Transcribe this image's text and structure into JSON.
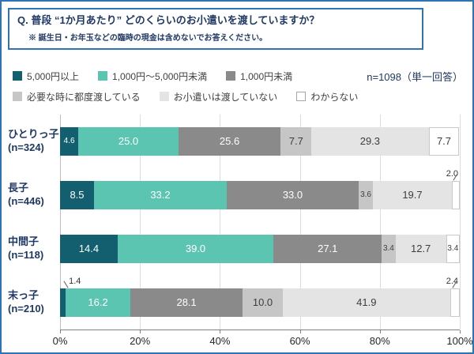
{
  "header": {
    "title": "Q. 普段 “1か月あたり” どのくらいのお小遣いを渡していますか？",
    "subtitle": "※ 誕生日・お年玉などの臨時の現金は含めないでお答えください。"
  },
  "sample_note": "n=1098（単一回答）",
  "colors": {
    "frame_border": "#2e74b5",
    "title_text": "#1f3864",
    "axis_line": "#808080"
  },
  "chart_data": {
    "type": "bar",
    "stacked": true,
    "orientation": "horizontal",
    "unit": "%",
    "xlim": [
      0,
      100
    ],
    "x_ticks": [
      "0%",
      "20%",
      "40%",
      "60%",
      "80%",
      "100%"
    ],
    "grid": true,
    "legend_position": "top",
    "categories": [
      {
        "name": "ひとりっ子",
        "n": "(n=324)"
      },
      {
        "name": "長子",
        "n": "(n=446)"
      },
      {
        "name": "中間子",
        "n": "(n=118)"
      },
      {
        "name": "末っ子",
        "n": "(n=210)"
      }
    ],
    "series": [
      {
        "name": "5,000円以上",
        "color": "#135f70",
        "text_color": "#ffffff",
        "values": [
          4.6,
          8.5,
          14.4,
          1.4
        ]
      },
      {
        "name": "1,000円～5,000円未満",
        "color": "#5bc5b2",
        "text_color": "#ffffff",
        "values": [
          25.0,
          33.2,
          39.0,
          16.2
        ]
      },
      {
        "name": "1,000円未満",
        "color": "#8a8a8a",
        "text_color": "#ffffff",
        "values": [
          25.6,
          33.0,
          27.1,
          28.1
        ]
      },
      {
        "name": "必要な時に都度渡している",
        "color": "#c6c6c6",
        "text_color": "#3d3d3d",
        "values": [
          7.7,
          3.6,
          3.4,
          10.0
        ]
      },
      {
        "name": "お小遣いは渡していない",
        "color": "#e4e4e4",
        "text_color": "#3d3d3d",
        "values": [
          29.3,
          19.7,
          12.7,
          41.9
        ]
      },
      {
        "name": "わからない",
        "color": "#ffffff",
        "text_color": "#3d3d3d",
        "border": true,
        "values": [
          7.7,
          2.0,
          3.4,
          2.4
        ]
      }
    ],
    "outside_labels": [
      {
        "row": 1,
        "series": 5
      },
      {
        "row": 3,
        "series": 0
      },
      {
        "row": 3,
        "series": 5
      }
    ]
  }
}
